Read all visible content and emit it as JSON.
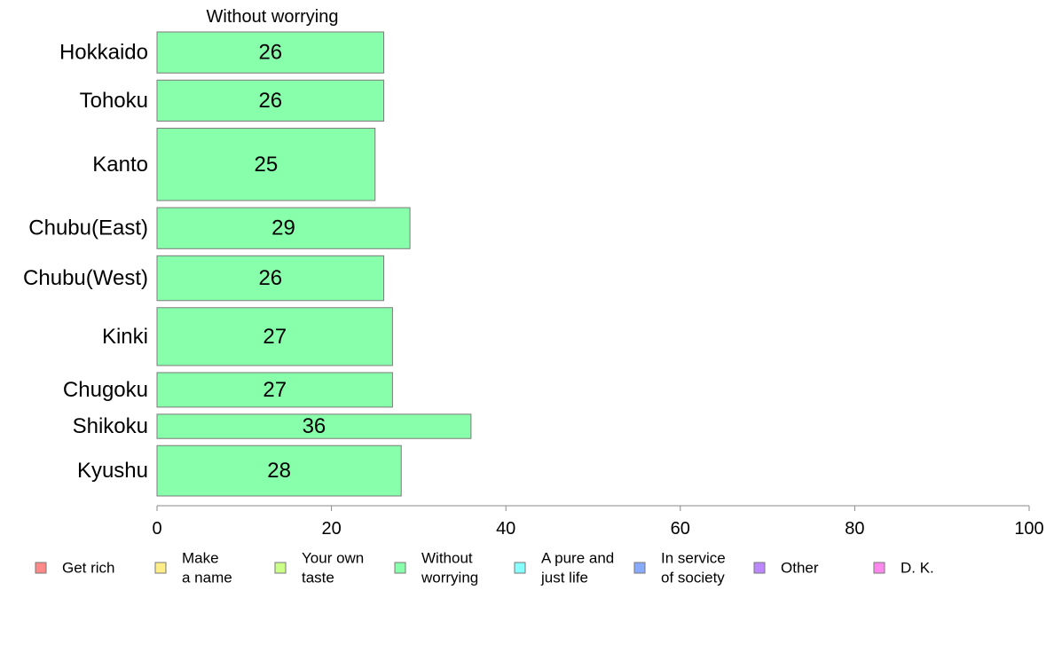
{
  "chart_data": {
    "type": "bar",
    "orientation": "horizontal",
    "title": "Without worrying",
    "categories": [
      "Hokkaido",
      "Tohoku",
      "Kanto",
      "Chubu(East)",
      "Chubu(West)",
      "Kinki",
      "Chugoku",
      "Shikoku",
      "Kyushu"
    ],
    "values": [
      26,
      26,
      25,
      29,
      26,
      27,
      27,
      36,
      28
    ],
    "value_labels": [
      "26",
      "26",
      "25",
      "29",
      "26",
      "27",
      "27",
      "36",
      "28"
    ],
    "bar_weights": [
      0.88,
      0.88,
      1.55,
      0.88,
      0.96,
      1.24,
      0.74,
      0.52,
      1.08
    ],
    "xlim": [
      0,
      100
    ],
    "xticks": [
      0,
      20,
      40,
      60,
      80,
      100
    ],
    "bar_color": "#88ffaa",
    "legend": {
      "placement": "bottom",
      "items": [
        {
          "lines": [
            "Get rich"
          ],
          "color": "#ff8888"
        },
        {
          "lines": [
            "Make",
            "a name"
          ],
          "color": "#ffee88"
        },
        {
          "lines": [
            "Your own",
            "taste"
          ],
          "color": "#ccff88"
        },
        {
          "lines": [
            "Without",
            "worrying"
          ],
          "color": "#88ffaa"
        },
        {
          "lines": [
            "A pure and",
            "just life"
          ],
          "color": "#88ffff"
        },
        {
          "lines": [
            "In service",
            "of society"
          ],
          "color": "#88aaff"
        },
        {
          "lines": [
            "Other"
          ],
          "color": "#bb88ff"
        },
        {
          "lines": [
            "D. K."
          ],
          "color": "#ff88ee"
        }
      ]
    }
  }
}
